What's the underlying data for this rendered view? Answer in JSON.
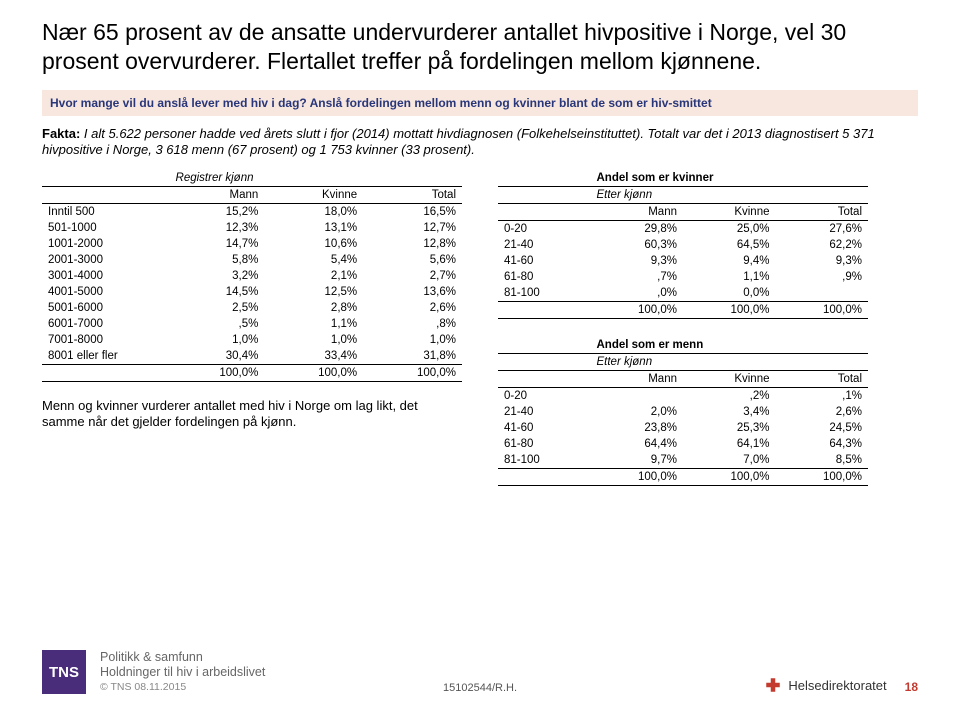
{
  "headline": "Nær 65 prosent av de ansatte undervurderer antallet hivpositive i Norge, vel 30 prosent overvurderer. Flertallet treffer på fordelingen mellom kjønnene.",
  "subquestion": "Hvor mange vil du anslå lever med hiv i dag? Anslå fordelingen mellom menn og kvinner blant de som er hiv-smittet",
  "fakta_label": "Fakta:",
  "fakta_text": " I alt 5.622 personer hadde ved årets slutt i fjor (2014) mottatt hivdiagnosen (Folkehelseinstituttet). Totalt var det i 2013 diagnostisert 5 371 hivpositive i Norge, 3 618 menn (67 prosent) og 1 753 kvinner (33 prosent).",
  "table1": {
    "super_header": "Registrer kjønn",
    "columns": [
      "Mann",
      "Kvinne",
      "Total"
    ],
    "rows": [
      {
        "label": "Inntil 500",
        "v": [
          "15,2%",
          "18,0%",
          "16,5%"
        ]
      },
      {
        "label": "501-1000",
        "v": [
          "12,3%",
          "13,1%",
          "12,7%"
        ]
      },
      {
        "label": "1001-2000",
        "v": [
          "14,7%",
          "10,6%",
          "12,8%"
        ]
      },
      {
        "label": "2001-3000",
        "v": [
          "5,8%",
          "5,4%",
          "5,6%"
        ]
      },
      {
        "label": "3001-4000",
        "v": [
          "3,2%",
          "2,1%",
          "2,7%"
        ]
      },
      {
        "label": "4001-5000",
        "v": [
          "14,5%",
          "12,5%",
          "13,6%"
        ]
      },
      {
        "label": "5001-6000",
        "v": [
          "2,5%",
          "2,8%",
          "2,6%"
        ]
      },
      {
        "label": "6001-7000",
        "v": [
          ",5%",
          "1,1%",
          ",8%"
        ]
      },
      {
        "label": "7001-8000",
        "v": [
          "1,0%",
          "1,0%",
          "1,0%"
        ]
      },
      {
        "label": "8001 eller fler",
        "v": [
          "30,4%",
          "33,4%",
          "31,8%"
        ]
      }
    ],
    "total_row": {
      "label": "",
      "v": [
        "100,0%",
        "100,0%",
        "100,0%"
      ]
    }
  },
  "note": "Menn og kvinner vurderer antallet med hiv i Norge om lag likt, det samme når det gjelder fordelingen på kjønn.",
  "table2": {
    "title": "Andel som er kvinner",
    "subtitle": "Etter kjønn",
    "columns": [
      "Mann",
      "Kvinne",
      "Total"
    ],
    "rows": [
      {
        "label": "0-20",
        "v": [
          "29,8%",
          "25,0%",
          "27,6%"
        ]
      },
      {
        "label": "21-40",
        "v": [
          "60,3%",
          "64,5%",
          "62,2%"
        ]
      },
      {
        "label": "41-60",
        "v": [
          "9,3%",
          "9,4%",
          "9,3%"
        ]
      },
      {
        "label": "61-80",
        "v": [
          ",7%",
          "1,1%",
          ",9%"
        ]
      },
      {
        "label": "81-100",
        "v": [
          ",0%",
          "0,0%",
          ""
        ]
      }
    ],
    "total_row": {
      "label": "",
      "v": [
        "100,0%",
        "100,0%",
        "100,0%"
      ]
    }
  },
  "table3": {
    "title": "Andel som er menn",
    "subtitle": "Etter kjønn",
    "columns": [
      "Mann",
      "Kvinne",
      "Total"
    ],
    "rows": [
      {
        "label": "0-20",
        "v": [
          "",
          ",2%",
          ",1%"
        ]
      },
      {
        "label": "21-40",
        "v": [
          "2,0%",
          "3,4%",
          "2,6%"
        ]
      },
      {
        "label": "41-60",
        "v": [
          "23,8%",
          "25,3%",
          "24,5%"
        ]
      },
      {
        "label": "61-80",
        "v": [
          "64,4%",
          "64,1%",
          "64,3%"
        ]
      },
      {
        "label": "81-100",
        "v": [
          "9,7%",
          "7,0%",
          "8,5%"
        ]
      }
    ],
    "total_row": {
      "label": "",
      "v": [
        "100,0%",
        "100,0%",
        "100,0%"
      ]
    }
  },
  "footer": {
    "tns": "TNS",
    "line1": "Politikk & samfunn",
    "line2": "Holdninger til hiv i arbeidslivet",
    "copyright": "© TNS 08.11.2015",
    "ref": "15102544/R.H.",
    "page": "18",
    "logo_text": "Helsedirektoratet"
  }
}
